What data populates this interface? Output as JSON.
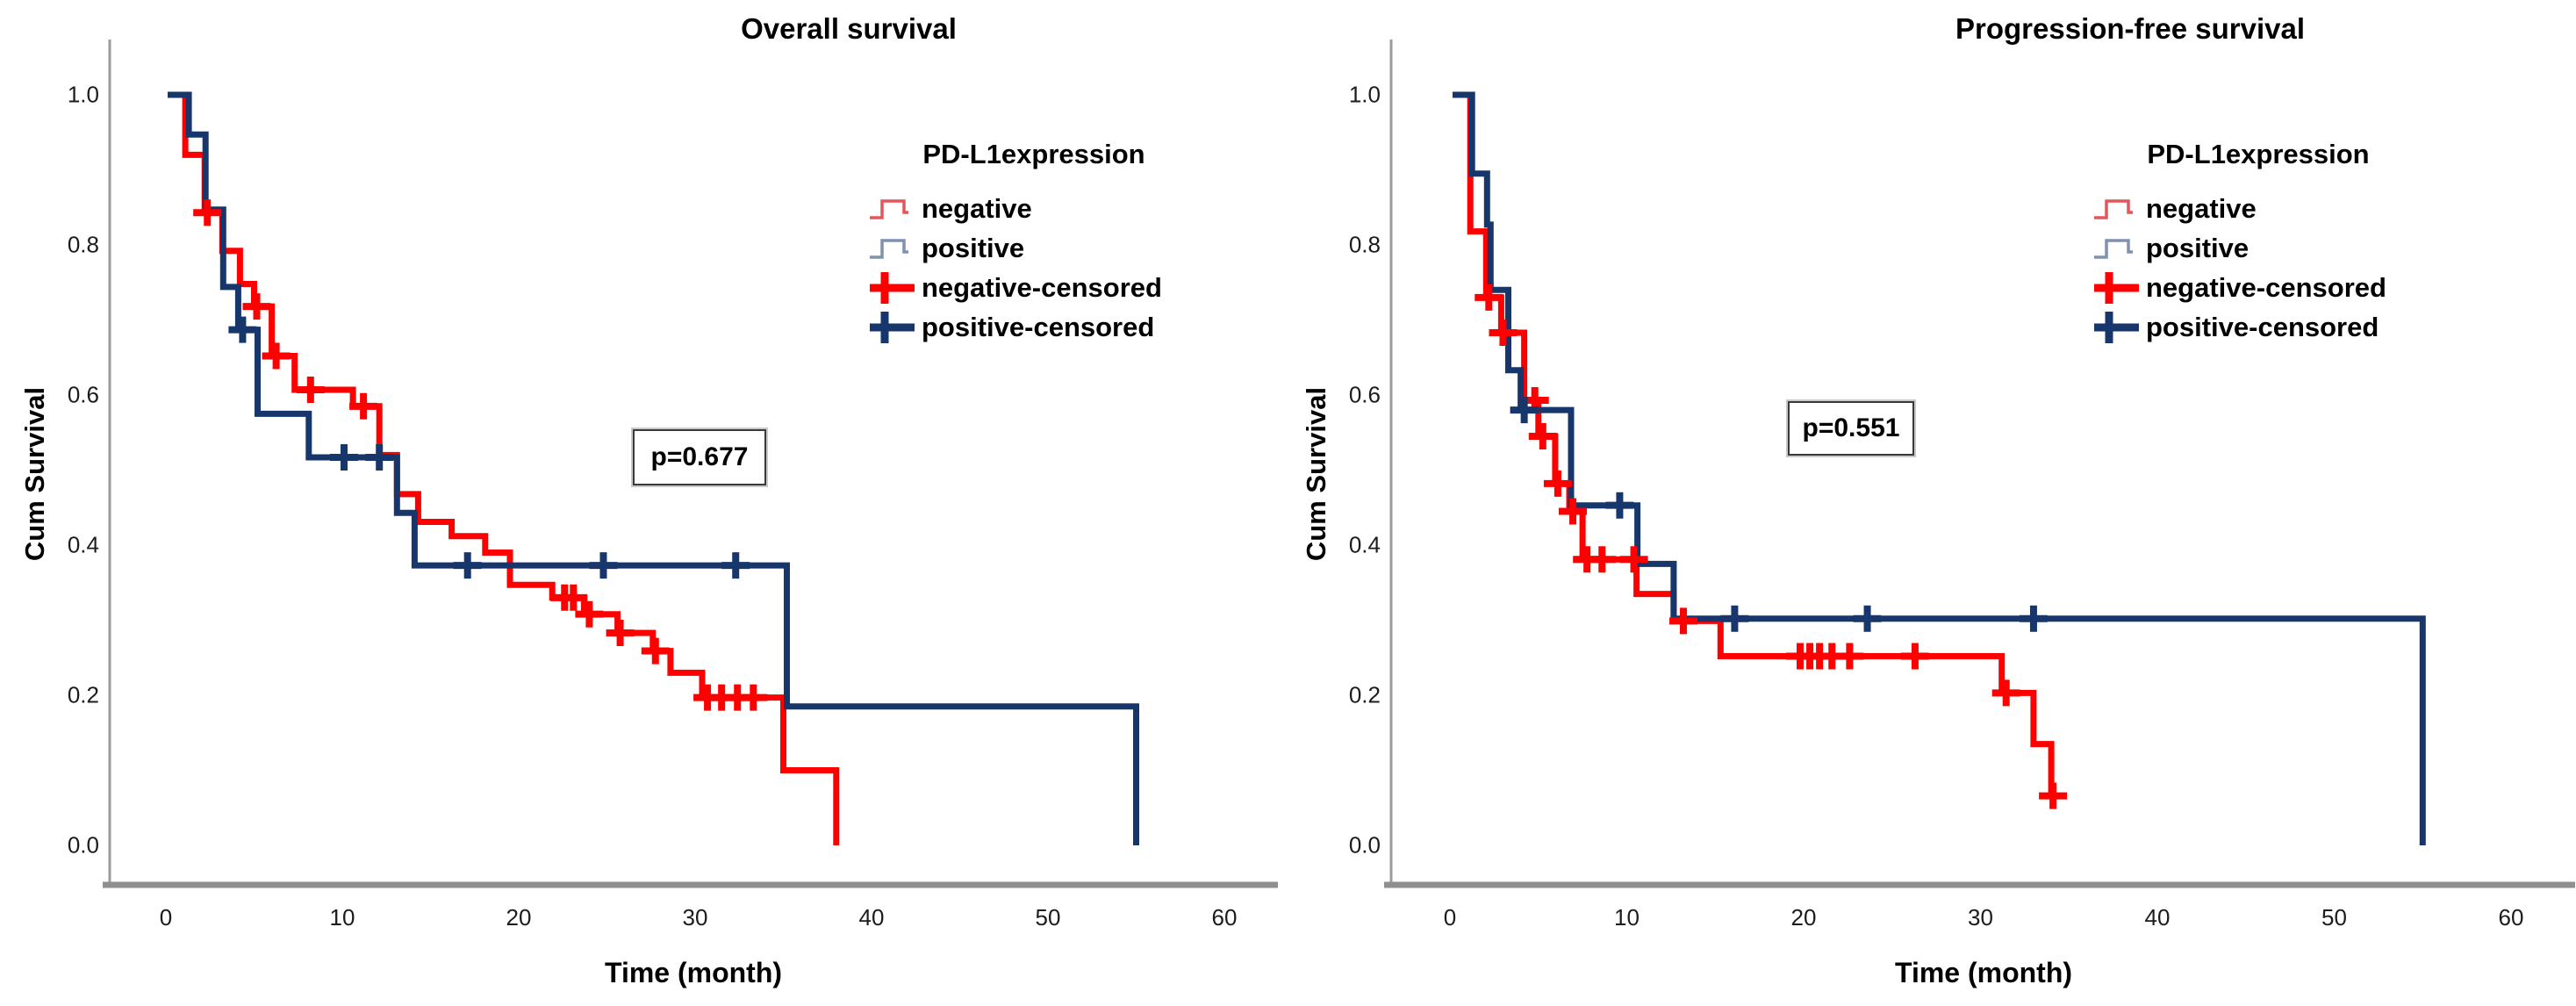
{
  "figure": {
    "background": "#ffffff",
    "axis_color": "#8f8f8f",
    "text_color": "#000000"
  },
  "chart_data": [
    {
      "type": "line",
      "subtype": "kaplan-meier-step",
      "title": "Overall survival",
      "xlabel": "Time (month)",
      "ylabel": "Cum Survival",
      "p_label": "p=0.677",
      "xlim": [
        0,
        63
      ],
      "ylim": [
        0,
        1.05
      ],
      "grid": false,
      "legend_position": "upper right",
      "xticks": [
        "0",
        "10",
        "20",
        "30",
        "40",
        "50",
        "60"
      ],
      "yticks": [
        "0.0",
        "0.2",
        "0.4",
        "0.6",
        "0.8",
        "1.0"
      ],
      "legend": {
        "title": "PD-L1expression",
        "entries": [
          {
            "label": "negative",
            "glyph": "step-line",
            "color": "#e4555c"
          },
          {
            "label": "positive",
            "glyph": "step-line",
            "color": "#8191b4"
          },
          {
            "label": "negative-censored",
            "glyph": "plus",
            "color": "#fe0000"
          },
          {
            "label": "positive-censored",
            "glyph": "plus",
            "color": "#17366b"
          }
        ]
      },
      "series": [
        {
          "name": "negative",
          "color": "#fe0000",
          "steps": [
            [
              0.3,
              1.0
            ],
            [
              1.1,
              0.92
            ],
            [
              2.2,
              0.843
            ],
            [
              3.2,
              0.792
            ],
            [
              4.2,
              0.748
            ],
            [
              5.0,
              0.718
            ],
            [
              6.0,
              0.652
            ],
            [
              7.3,
              0.607
            ],
            [
              10.6,
              0.585
            ],
            [
              12.1,
              0.52
            ],
            [
              13.1,
              0.468
            ],
            [
              14.3,
              0.431
            ],
            [
              16.2,
              0.412
            ],
            [
              18.1,
              0.39
            ],
            [
              19.5,
              0.347
            ],
            [
              21.9,
              0.33
            ],
            [
              23.7,
              0.308
            ],
            [
              25.6,
              0.283
            ],
            [
              27.6,
              0.259
            ],
            [
              28.6,
              0.23
            ],
            [
              30.4,
              0.197
            ],
            [
              35.0,
              0.1
            ],
            [
              38.0,
              0.0
            ]
          ],
          "censors": [
            [
              2.35,
              0.843
            ],
            [
              5.15,
              0.718
            ],
            [
              6.25,
              0.652
            ],
            [
              8.2,
              0.607
            ],
            [
              11.2,
              0.585
            ],
            [
              22.6,
              0.33
            ],
            [
              23.1,
              0.33
            ],
            [
              24.0,
              0.308
            ],
            [
              25.75,
              0.283
            ],
            [
              27.75,
              0.259
            ],
            [
              30.7,
              0.197
            ],
            [
              31.5,
              0.197
            ],
            [
              32.4,
              0.197
            ],
            [
              33.3,
              0.197
            ]
          ]
        },
        {
          "name": "positive",
          "color": "#17366b",
          "steps": [
            [
              0.1,
              1.0
            ],
            [
              1.3,
              0.947
            ],
            [
              2.25,
              0.847
            ],
            [
              3.25,
              0.744
            ],
            [
              4.1,
              0.687
            ],
            [
              5.2,
              0.575
            ],
            [
              8.1,
              0.517
            ],
            [
              13.1,
              0.443
            ],
            [
              14.1,
              0.373
            ],
            [
              35.2,
              0.185
            ],
            [
              55.0,
              0.0
            ]
          ],
          "censors": [
            [
              4.35,
              0.687
            ],
            [
              10.1,
              0.517
            ],
            [
              12.1,
              0.517
            ],
            [
              17.1,
              0.373
            ],
            [
              24.8,
              0.373
            ],
            [
              32.3,
              0.373
            ]
          ]
        }
      ]
    },
    {
      "type": "line",
      "subtype": "kaplan-meier-step",
      "title": "Progression-free survival",
      "xlabel": "Time (month)",
      "ylabel": "Cum Survival",
      "p_label": "p=0.551",
      "xlim": [
        0,
        63
      ],
      "ylim": [
        0,
        1.05
      ],
      "grid": false,
      "legend_position": "upper right",
      "xticks": [
        "0",
        "10",
        "20",
        "30",
        "40",
        "50",
        "60"
      ],
      "yticks": [
        "0.0",
        "0.2",
        "0.4",
        "0.6",
        "0.8",
        "1.0"
      ],
      "legend": {
        "title": "PD-L1expression",
        "entries": [
          {
            "label": "negative",
            "glyph": "step-line",
            "color": "#e4555c"
          },
          {
            "label": "positive",
            "glyph": "step-line",
            "color": "#8191b4"
          },
          {
            "label": "negative-censored",
            "glyph": "plus",
            "color": "#fe0000"
          },
          {
            "label": "positive-censored",
            "glyph": "plus",
            "color": "#17366b"
          }
        ]
      },
      "series": [
        {
          "name": "negative",
          "color": "#fe0000",
          "steps": [
            [
              0.35,
              1.0
            ],
            [
              1.15,
              0.818
            ],
            [
              2.05,
              0.73
            ],
            [
              2.9,
              0.683
            ],
            [
              4.2,
              0.593
            ],
            [
              5.0,
              0.545
            ],
            [
              5.95,
              0.482
            ],
            [
              6.75,
              0.445
            ],
            [
              7.5,
              0.381
            ],
            [
              10.55,
              0.335
            ],
            [
              12.65,
              0.299
            ],
            [
              15.3,
              0.252
            ],
            [
              31.2,
              0.203
            ],
            [
              33.0,
              0.135
            ],
            [
              34.0,
              0.066
            ],
            [
              34.35,
              0.066
            ]
          ],
          "censors": [
            [
              2.2,
              0.73
            ],
            [
              3.0,
              0.683
            ],
            [
              4.8,
              0.593
            ],
            [
              5.25,
              0.545
            ],
            [
              6.1,
              0.482
            ],
            [
              6.95,
              0.445
            ],
            [
              7.75,
              0.381
            ],
            [
              8.6,
              0.381
            ],
            [
              10.4,
              0.381
            ],
            [
              13.2,
              0.299
            ],
            [
              19.8,
              0.252
            ],
            [
              20.35,
              0.252
            ],
            [
              20.9,
              0.252
            ],
            [
              21.6,
              0.252
            ],
            [
              22.6,
              0.252
            ],
            [
              26.3,
              0.252
            ],
            [
              31.45,
              0.203
            ],
            [
              34.1,
              0.066
            ]
          ]
        },
        {
          "name": "positive",
          "color": "#17366b",
          "steps": [
            [
              0.15,
              1.0
            ],
            [
              1.25,
              0.895
            ],
            [
              2.1,
              0.827
            ],
            [
              2.3,
              0.74
            ],
            [
              3.3,
              0.633
            ],
            [
              4.0,
              0.58
            ],
            [
              6.85,
              0.453
            ],
            [
              10.6,
              0.375
            ],
            [
              12.65,
              0.302
            ],
            [
              55.0,
              0.0
            ]
          ],
          "censors": [
            [
              4.2,
              0.58
            ],
            [
              9.6,
              0.453
            ],
            [
              16.1,
              0.302
            ],
            [
              23.6,
              0.302
            ],
            [
              33.0,
              0.302
            ]
          ]
        }
      ]
    }
  ]
}
